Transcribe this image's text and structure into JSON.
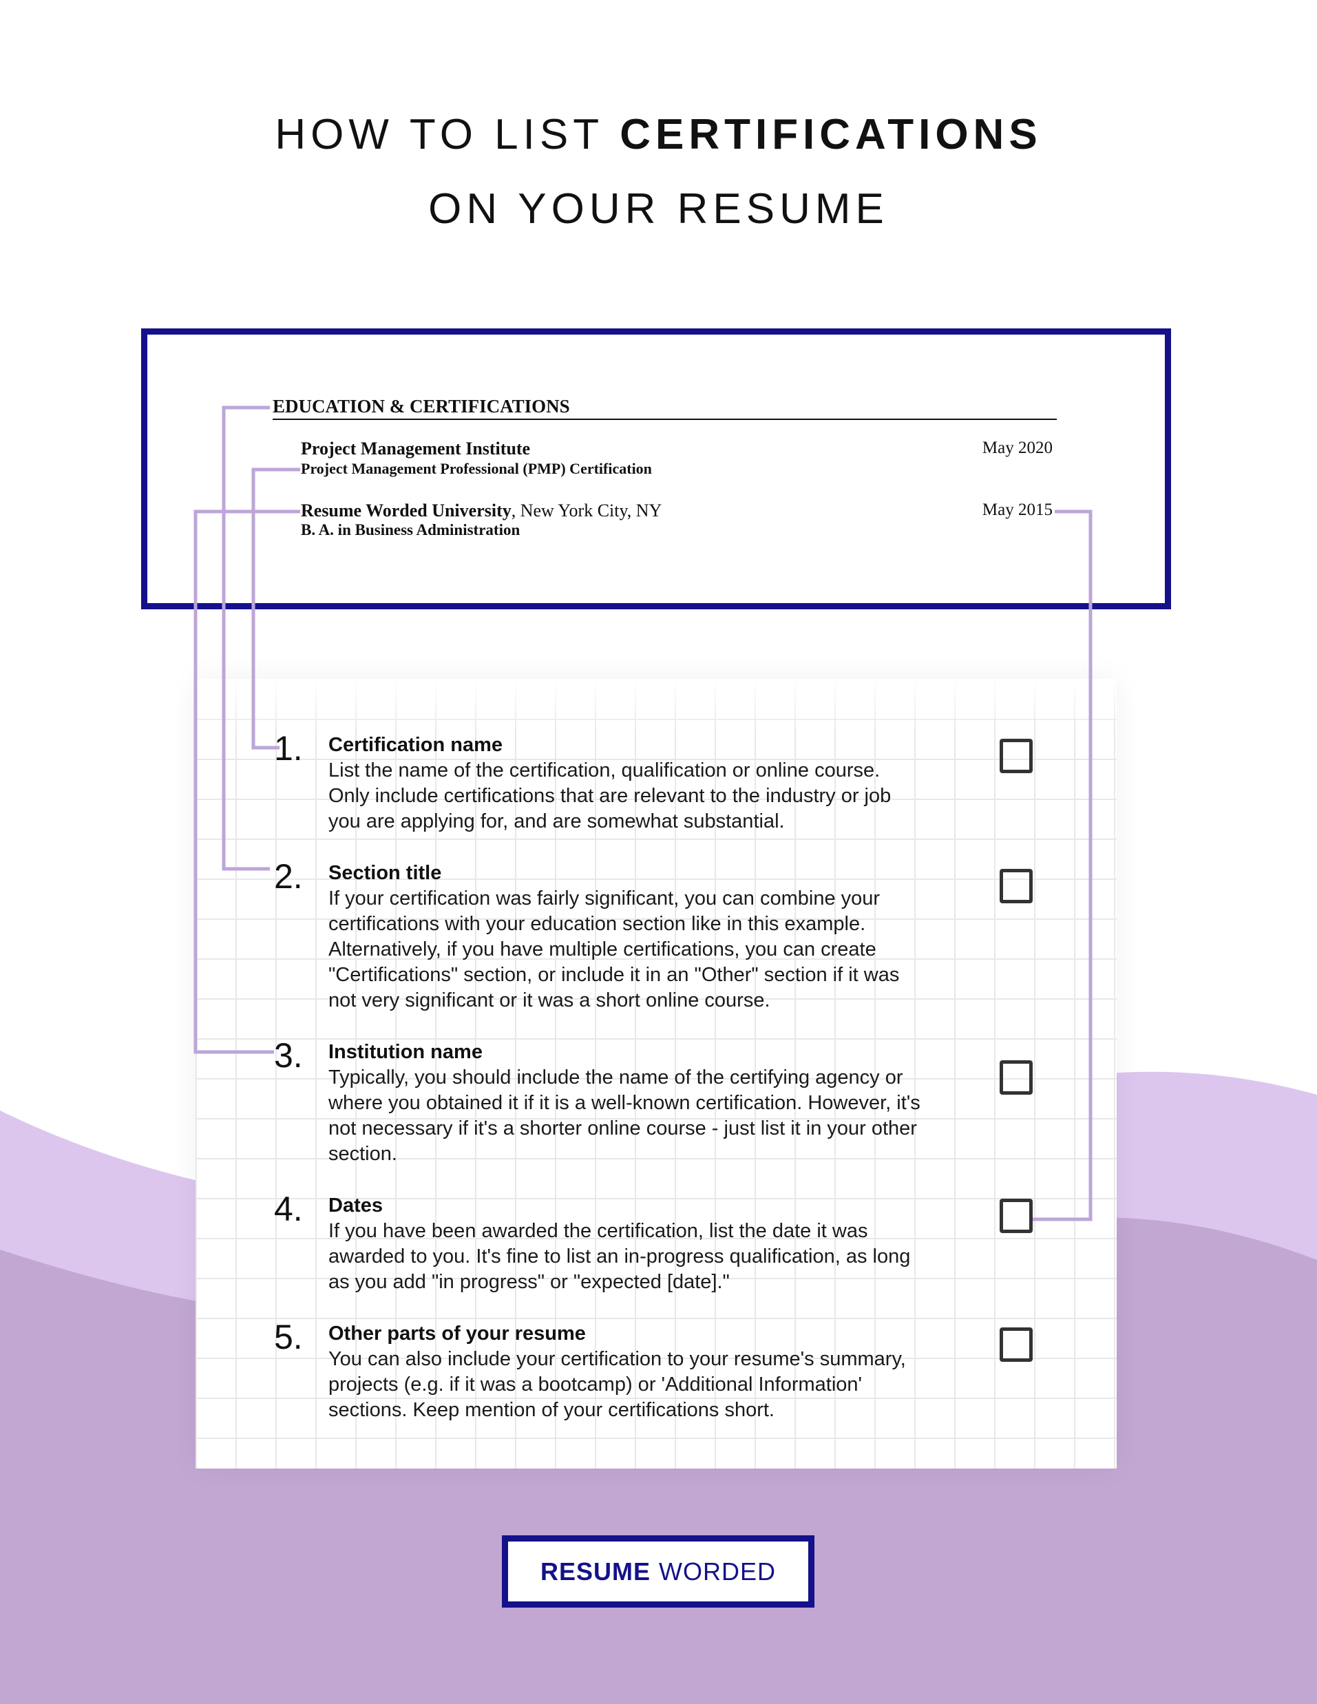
{
  "title": {
    "line1_prefix": "HOW TO LIST",
    "line1_bold": "CERTIFICATIONS",
    "line2": "ON YOUR RESUME"
  },
  "resume_example": {
    "section_heading": "EDUCATION & CERTIFICATIONS",
    "entries": [
      {
        "institution": "Project Management Institute",
        "location": "",
        "credential": "Project Management Professional (PMP) Certification",
        "date": "May 2020"
      },
      {
        "institution": "Resume Worded University",
        "location": ", New York City, NY",
        "credential": "B. A. in Business Administration",
        "date": "May 2015"
      }
    ]
  },
  "checklist": [
    {
      "number": "1.",
      "title": "Certification name",
      "lines": [
        "List the name of the certification, qualification or online course.",
        "Only include certifications that are relevant to the industry or job",
        "you are applying for, and are somewhat substantial."
      ],
      "checked": false
    },
    {
      "number": "2.",
      "title": "Section title",
      "lines": [
        "If your certification was fairly significant, you can combine your",
        "certifications with your education section like in this example.",
        "Alternatively, if you have multiple certifications, you can create",
        "\"Certifications\" section, or include it in an \"Other\" section if it was",
        "not very significant or it was a short online course."
      ],
      "checked": false
    },
    {
      "number": "3.",
      "title": "Institution name",
      "lines": [
        "Typically, you should include the name of the certifying agency or",
        "where you obtained it if it is a well-known certification. However, it's",
        "not necessary if it's a shorter online course - just list it in your other",
        "section."
      ],
      "checked": false
    },
    {
      "number": "4.",
      "title": "Dates",
      "lines": [
        "If you have been awarded the certification, list the date it was",
        "awarded to you. It's fine to list an in-progress qualification, as long",
        "as you add \"in progress\" or \"expected [date].\""
      ],
      "checked": false
    },
    {
      "number": "5.",
      "title": "Other parts of your resume",
      "lines": [
        "You can also include your certification to your resume's summary,",
        "projects (e.g. if it was a bootcamp) or 'Additional Information'",
        "sections. Keep mention of your certifications short."
      ],
      "checked": false
    }
  ],
  "logo": {
    "bold": "RESUME",
    "regular": "WORDED"
  },
  "colors": {
    "navy": "#14118a",
    "light_purple": "#dcc6ee",
    "dark_purple": "#c2a7d3",
    "connector": "#bca6d8"
  }
}
